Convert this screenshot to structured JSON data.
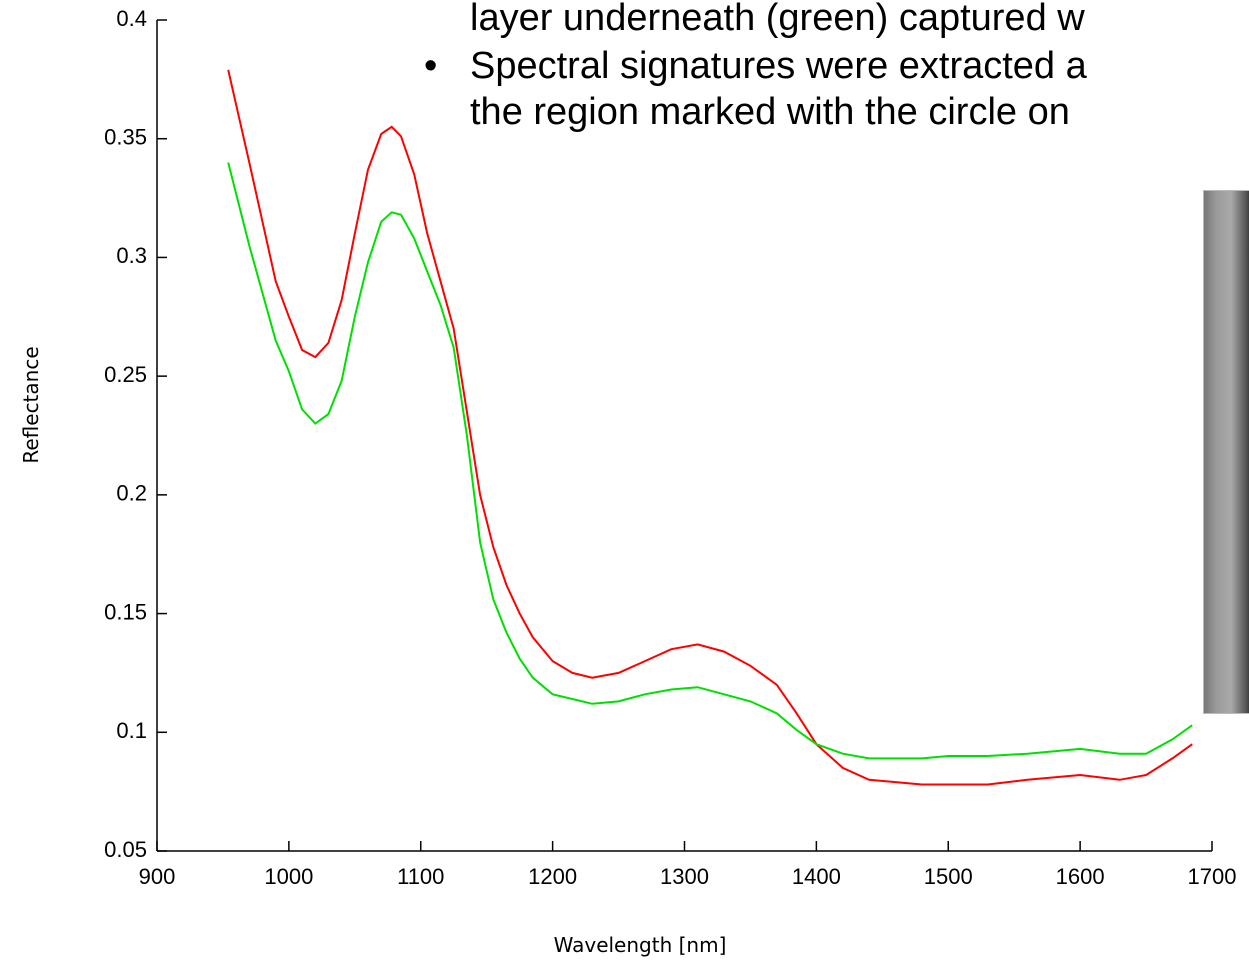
{
  "chart_data": {
    "type": "line",
    "ylabel": "Reflectance",
    "xlabel": "Wavelength [nm]",
    "annotations": [
      "layer underneath (green) captured w",
      "Spectral signatures were extracted a",
      "the region marked with the circle on"
    ],
    "bullet": "•",
    "x": [
      954,
      970,
      990,
      1000,
      1010,
      1020,
      1030,
      1040,
      1050,
      1060,
      1070,
      1078,
      1085,
      1095,
      1105,
      1115,
      1125,
      1135,
      1145,
      1155,
      1165,
      1175,
      1185,
      1200,
      1215,
      1230,
      1250,
      1270,
      1290,
      1310,
      1330,
      1350,
      1370,
      1385,
      1400,
      1420,
      1440,
      1460,
      1480,
      1500,
      1530,
      1560,
      1600,
      1630,
      1650,
      1670,
      1685
    ],
    "series": [
      {
        "color": "#ff0000",
        "values": [
          0.379,
          0.34,
          0.29,
          0.275,
          0.261,
          0.258,
          0.264,
          0.282,
          0.31,
          0.337,
          0.352,
          0.355,
          0.351,
          0.335,
          0.31,
          0.29,
          0.27,
          0.235,
          0.2,
          0.178,
          0.162,
          0.15,
          0.14,
          0.13,
          0.125,
          0.123,
          0.125,
          0.13,
          0.135,
          0.137,
          0.134,
          0.128,
          0.12,
          0.108,
          0.095,
          0.085,
          0.08,
          0.079,
          0.078,
          0.078,
          0.078,
          0.08,
          0.082,
          0.08,
          0.082,
          0.089,
          0.095
        ]
      },
      {
        "color": "#00e000",
        "values": [
          0.34,
          0.305,
          0.265,
          0.252,
          0.236,
          0.23,
          0.234,
          0.248,
          0.275,
          0.298,
          0.315,
          0.319,
          0.318,
          0.308,
          0.294,
          0.28,
          0.262,
          0.225,
          0.18,
          0.156,
          0.142,
          0.131,
          0.123,
          0.116,
          0.114,
          0.112,
          0.113,
          0.116,
          0.118,
          0.119,
          0.116,
          0.113,
          0.108,
          0.101,
          0.095,
          0.091,
          0.089,
          0.089,
          0.089,
          0.09,
          0.09,
          0.091,
          0.093,
          0.091,
          0.091,
          0.097,
          0.103
        ]
      }
    ],
    "xlim": [
      900,
      1700
    ],
    "xticks": [
      900,
      1000,
      1100,
      1200,
      1300,
      1400,
      1500,
      1600,
      1700
    ],
    "ylim": [
      0.05,
      0.4
    ],
    "yticks": [
      0.05,
      0.1,
      0.15,
      0.2,
      0.25,
      0.3,
      0.35,
      0.4
    ]
  }
}
